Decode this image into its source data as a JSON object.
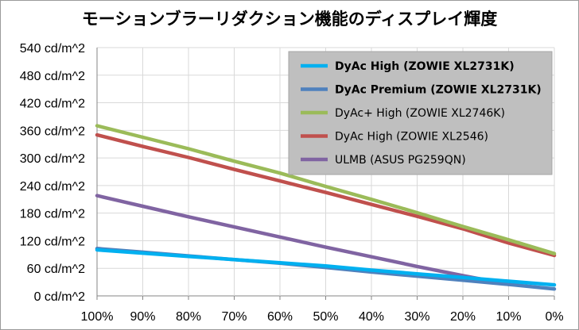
{
  "chart_data": {
    "type": "line",
    "title": "モーションブラーリダクション機能のディスプレイ輝度",
    "x_ticks": [
      "100%",
      "90%",
      "80%",
      "70%",
      "60%",
      "50%",
      "40%",
      "30%",
      "20%",
      "10%",
      "0%"
    ],
    "y_ticks": [
      "0 cd/m^2",
      "60 cd/m^2",
      "120 cd/m^2",
      "180 cd/m^2",
      "240 cd/m^2",
      "300 cd/m^2",
      "360 cd/m^2",
      "420 cd/m^2",
      "480 cd/m^2",
      "540 cd/m^2"
    ],
    "x_values": [
      100,
      90,
      80,
      70,
      60,
      50,
      40,
      30,
      20,
      10,
      0
    ],
    "ylim": [
      0,
      540
    ],
    "grid": true,
    "legend_position": "top-right",
    "series": [
      {
        "name": "DyAc High (ZOWIE XL2731K)",
        "color": "#00b0f0",
        "bold": true,
        "values": [
          100,
          93,
          86,
          79,
          72,
          65,
          56,
          48,
          40,
          32,
          24
        ]
      },
      {
        "name": "DyAc Premium (ZOWIE XL2731K)",
        "color": "#4f81bd",
        "bold": true,
        "values": [
          103,
          95,
          87,
          79,
          71,
          62,
          52,
          43,
          34,
          25,
          15
        ]
      },
      {
        "name": "DyAc+ High (ZOWIE XL2746K)",
        "color": "#9bbb59",
        "bold": false,
        "values": [
          370,
          345,
          320,
          293,
          267,
          238,
          210,
          181,
          151,
          122,
          92
        ]
      },
      {
        "name": "DyAc High (ZOWIE XL2546)",
        "color": "#c0504d",
        "bold": false,
        "values": [
          350,
          325,
          301,
          275,
          250,
          225,
          199,
          173,
          146,
          115,
          88
        ]
      },
      {
        "name": "ULMB (ASUS PG259QN)",
        "color": "#8064a2",
        "bold": false,
        "values": [
          218,
          195,
          172,
          150,
          128,
          106,
          85,
          64,
          44,
          25,
          null
        ]
      }
    ]
  }
}
